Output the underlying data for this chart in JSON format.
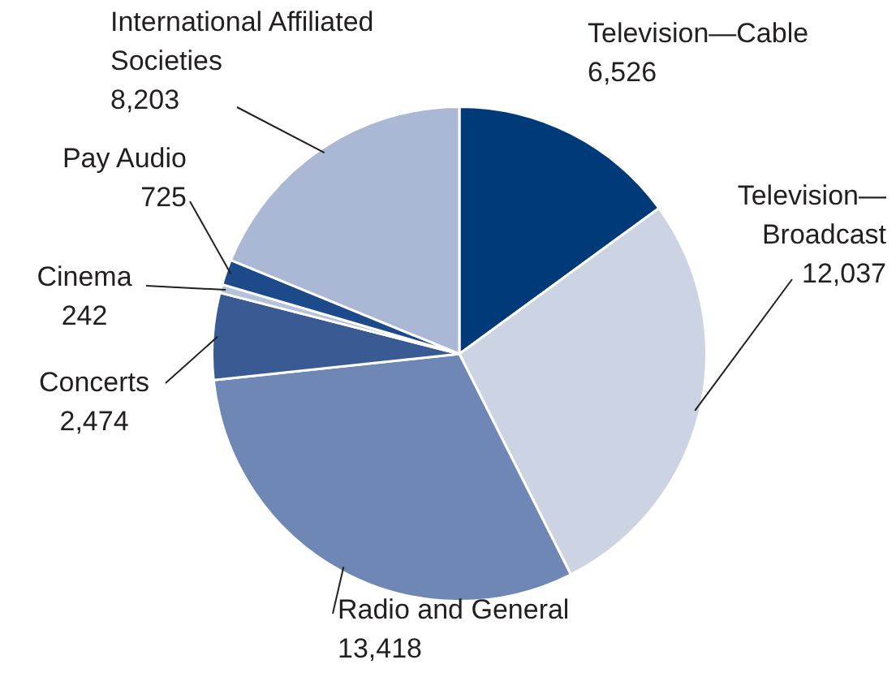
{
  "chart_data": {
    "type": "pie",
    "categories": [
      "Television—Cable",
      "Television—Broadcast",
      "Radio and General",
      "Concerts",
      "Cinema",
      "Pay Audio",
      "International Affiliated Societies"
    ],
    "values": [
      6526,
      12037,
      13418,
      2474,
      242,
      725,
      8203
    ],
    "value_labels": [
      "6,526",
      "12,037",
      "13,418",
      "2,474",
      "242",
      "725",
      "8,203"
    ],
    "colors": [
      "#003a78",
      "#ccd3e3",
      "#6f87b5",
      "#3a5a94",
      "#b6c2da",
      "#1d4a8a",
      "#aab7d5"
    ]
  }
}
